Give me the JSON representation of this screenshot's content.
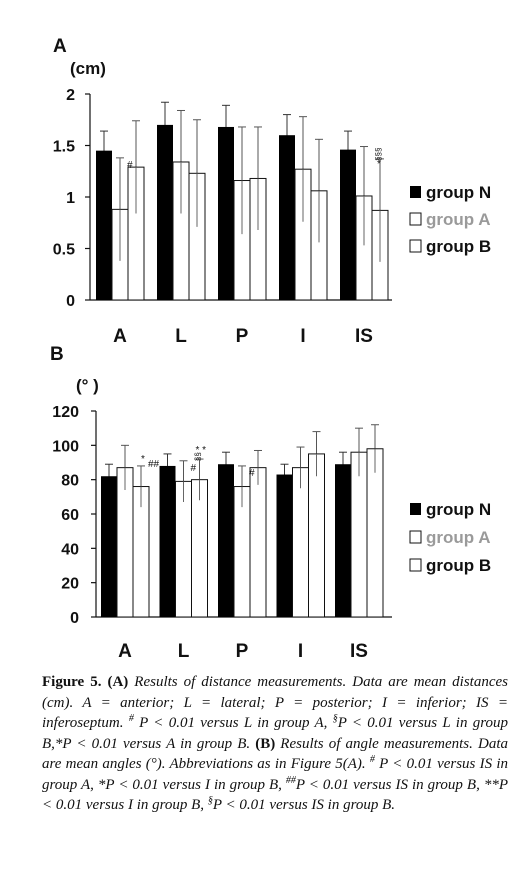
{
  "chart_data": [
    {
      "type": "bar",
      "panel_label": "A",
      "unit_label": "(cm)",
      "categories": [
        "A",
        "L",
        "P",
        "I",
        "IS"
      ],
      "ylim": [
        0,
        2
      ],
      "yticks": [
        "0",
        "0.5",
        "1",
        "1.5",
        "2"
      ],
      "grid": false,
      "legend_position": "right",
      "series": [
        {
          "name": "group N",
          "color": "#000000",
          "values": [
            1.45,
            1.7,
            1.68,
            1.6,
            1.46
          ],
          "errors": [
            0.19,
            0.22,
            0.21,
            0.2,
            0.18
          ]
        },
        {
          "name": "group A",
          "color": "#ffffff",
          "values": [
            0.88,
            1.34,
            1.16,
            1.27,
            1.01
          ],
          "errors": [
            0.5,
            0.5,
            0.52,
            0.51,
            0.48
          ]
        },
        {
          "name": "group B",
          "color": "#ffffff",
          "values": [
            1.29,
            1.23,
            1.18,
            1.06,
            0.87
          ],
          "errors": [
            0.45,
            0.52,
            0.5,
            0.5,
            0.5
          ]
        }
      ],
      "annotations": [
        {
          "category": "A",
          "series": "group A",
          "text": "#"
        },
        {
          "category": "IS",
          "series": "group B",
          "text": "*"
        },
        {
          "category": "IS",
          "series": "group B",
          "text": "§§§"
        }
      ]
    },
    {
      "type": "bar",
      "panel_label": "B",
      "unit_label": "(°  )",
      "categories": [
        "A",
        "L",
        "P",
        "I",
        "IS"
      ],
      "ylim": [
        0,
        120
      ],
      "yticks": [
        "0",
        "20",
        "40",
        "60",
        "80",
        "100",
        "120"
      ],
      "grid": false,
      "legend_position": "right",
      "series": [
        {
          "name": "group N",
          "color": "#000000",
          "values": [
            82,
            88,
            89,
            83,
            89
          ],
          "errors": [
            7,
            7,
            7,
            6,
            7
          ]
        },
        {
          "name": "group A",
          "color": "#ffffff",
          "values": [
            87,
            79,
            76,
            87,
            96
          ],
          "errors": [
            13,
            12,
            12,
            12,
            14
          ]
        },
        {
          "name": "group B",
          "color": "#ffffff",
          "values": [
            76,
            80,
            87,
            95,
            98
          ],
          "errors": [
            12,
            12,
            10,
            13,
            14
          ]
        }
      ],
      "annotations": [
        {
          "category": "A",
          "series": "group B",
          "text": "*"
        },
        {
          "category": "A",
          "series": "group B",
          "text": "##"
        },
        {
          "category": "L",
          "series": "group A",
          "text": "#"
        },
        {
          "category": "L",
          "series": "group B",
          "text": "§§"
        },
        {
          "category": "L",
          "series": "group B",
          "text": "* *"
        },
        {
          "category": "P",
          "series": "group A",
          "text": "#"
        }
      ]
    }
  ],
  "caption": {
    "figure_label": "Figure 5.",
    "part_a_label": "(A)",
    "part_a_text": "Results of distance measurements. Data are mean distances (cm). A = anterior; L = lateral; P = posterior; I = inferior; IS = inferoseptum.",
    "hash": "#",
    "note_a1": "P < 0.01 versus L in group A,",
    "sect": "§",
    "note_a2": "P < 0.01 versus L in group B,*P < 0.01 versus A in group B.",
    "part_b_label": "(B)",
    "part_b_text": "Results of angle measurements. Data are mean angles (°). Abbreviations as in Figure 5(A).",
    "note_b1": "P < 0.01 versus IS in group A, *P < 0.01 versus I in group B,",
    "hash2": "##",
    "note_b2": "P < 0.01 versus IS in group B, **P < 0.01 versus I in group B,",
    "note_b3": "P < 0.01 versus IS in group B."
  }
}
